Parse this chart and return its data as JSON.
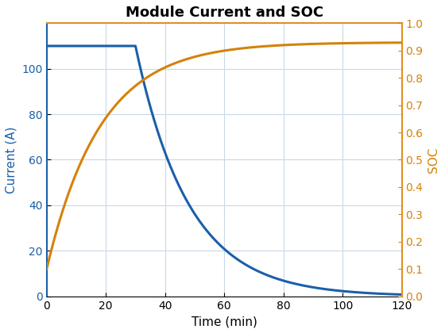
{
  "title": "Module Current and SOC",
  "xlabel": "Time (min)",
  "ylabel_left": "Current (A)",
  "ylabel_right": "SOC",
  "t_max": 120,
  "current_flat_value": 110,
  "current_flat_end": 30,
  "current_decay_tau": 18,
  "soc_start": 0.1,
  "soc_end": 0.93,
  "soc_k": 0.055,
  "xlim": [
    0,
    120
  ],
  "ylim_left": [
    0,
    120
  ],
  "ylim_right": [
    0,
    1
  ],
  "left_yticks": [
    0,
    20,
    40,
    60,
    80,
    100
  ],
  "right_yticks": [
    0,
    0.1,
    0.2,
    0.3,
    0.4,
    0.5,
    0.6,
    0.7,
    0.8,
    0.9,
    1.0
  ],
  "xticks": [
    0,
    20,
    40,
    60,
    80,
    100,
    120
  ],
  "color_current": "#1a5fa8",
  "color_soc": "#d4820a",
  "color_soc_spine": "#e09020",
  "background_color": "#ffffff",
  "grid_color": "#c8d8e8",
  "linewidth": 2.2,
  "title_fontsize": 13,
  "label_fontsize": 11,
  "tick_fontsize": 10
}
